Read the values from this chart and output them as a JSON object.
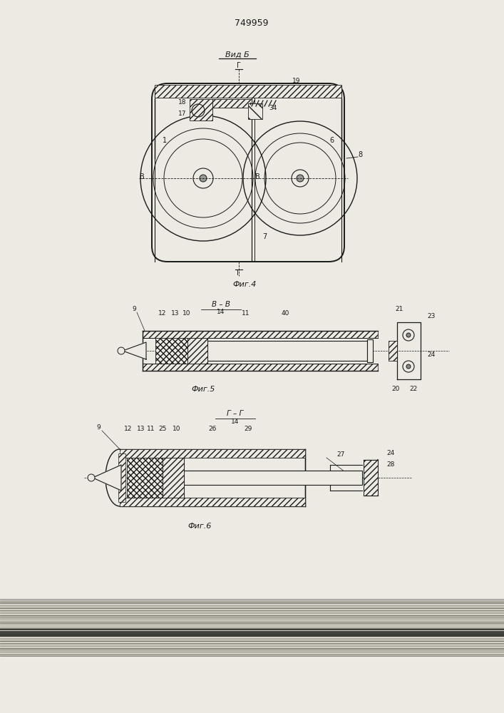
{
  "title": "749959",
  "fig4_label": "Фиг.4",
  "fig5_label": "Фиг.5",
  "fig6_label": "Фиг.6",
  "vid_b_label": "Вид Б",
  "bg_color": "#ede9e3",
  "line_color": "#1a1a1a"
}
